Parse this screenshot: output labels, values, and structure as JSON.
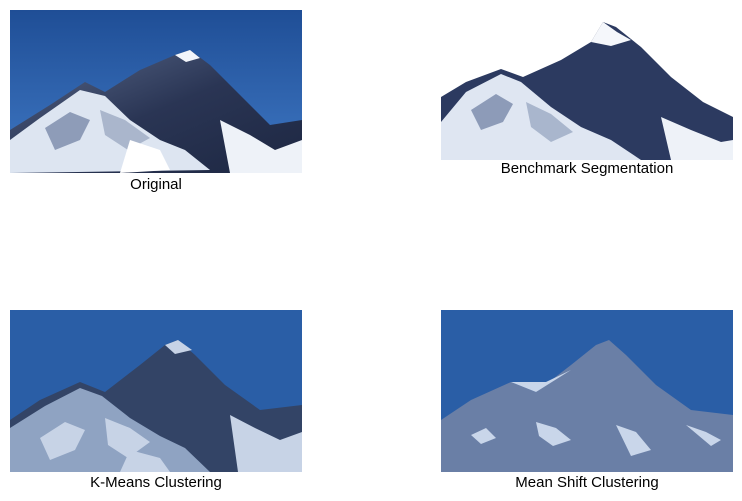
{
  "panels": [
    {
      "caption": "Original"
    },
    {
      "caption": "Benchmark Segmentation"
    },
    {
      "caption": "K-Means Clustering"
    },
    {
      "caption": "Mean Shift Clustering"
    }
  ],
  "colors": {
    "sky": "#2a5ea6",
    "snow": "#e9eef6",
    "rock_dark": "#2c3a5c",
    "kmeans_dark": "#334466",
    "kmeans_light": "#8fa3c2",
    "kmeans_snow": "#c7d3e6",
    "meanshift_fill": "#6a7fa6",
    "meanshift_snow": "#c9d6ea"
  }
}
